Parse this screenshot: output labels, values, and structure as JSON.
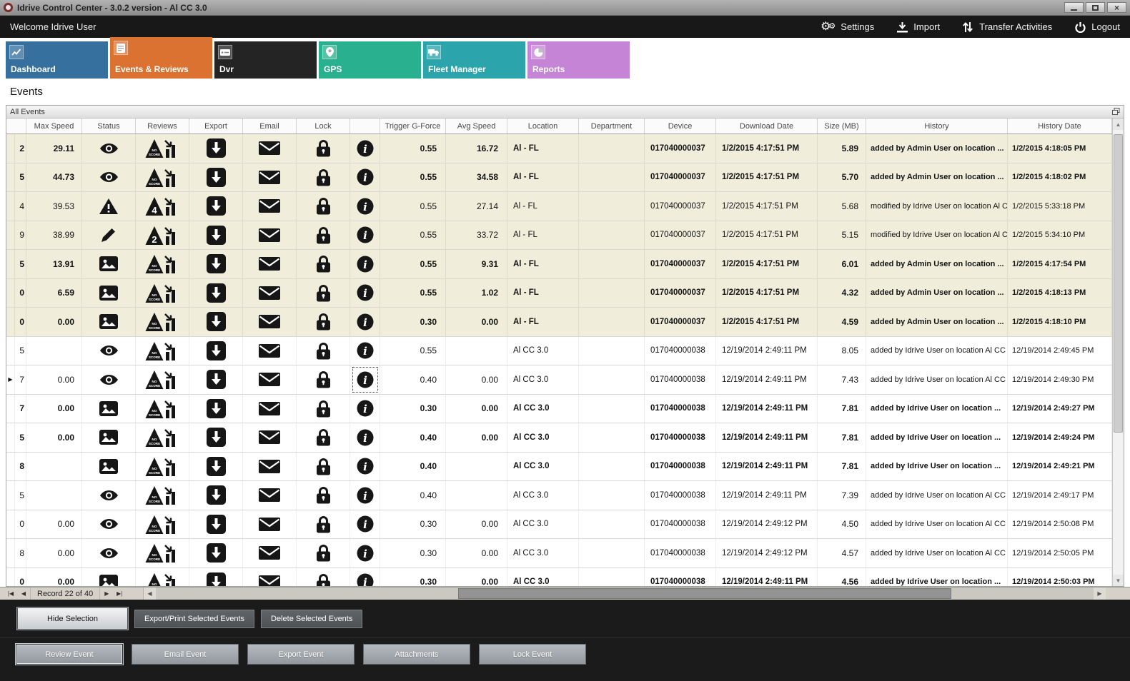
{
  "window": {
    "title": "Idrive Control Center - 3.0.2 version - Al CC 3.0",
    "buttons": [
      "minimize",
      "maximize",
      "close"
    ],
    "logo_icon": "record-ring-icon"
  },
  "menubar": {
    "welcome": "Welcome Idrive User",
    "actions": [
      {
        "label": "Settings",
        "icon": "gears-icon"
      },
      {
        "label": "Import",
        "icon": "import-icon"
      },
      {
        "label": "Transfer Activities",
        "icon": "transfer-icon"
      },
      {
        "label": "Logout",
        "icon": "power-icon"
      }
    ]
  },
  "tabs": [
    {
      "label": "Dashboard",
      "color": "#35709f",
      "icon": "line-chart-icon",
      "selected": false
    },
    {
      "label": "Events & Reviews",
      "color": "#dc7231",
      "icon": "events-list-icon",
      "selected": true
    },
    {
      "label": "Dvr",
      "color": "#242424",
      "icon": "dvr-icon",
      "selected": false
    },
    {
      "label": "GPS",
      "color": "#29b08e",
      "icon": "map-pin-icon",
      "selected": false
    },
    {
      "label": "Fleet Manager",
      "color": "#2ba4ac",
      "icon": "truck-icon",
      "selected": false
    },
    {
      "label": "Reports",
      "color": "#c684d7",
      "icon": "pie-chart-icon",
      "selected": false
    }
  ],
  "page_title": "Events",
  "panel": {
    "title": "All Events",
    "corner_icon": "restore-window-icon"
  },
  "table": {
    "columns": [
      "",
      "Max Speed",
      "Status",
      "Reviews",
      "Export",
      "Email",
      "Lock",
      "",
      "Trigger G-Force",
      "Avg Speed",
      "Location",
      "Department",
      "Device",
      "Download Date",
      "Size (MB)",
      "History",
      "History Date"
    ],
    "rows": [
      {
        "edge": "2",
        "max_speed": "29.11",
        "status": "eye",
        "review": "noscore",
        "trigger": "0.55",
        "avg_speed": "16.72",
        "location": "Al - FL",
        "department": "",
        "device": "017040000037",
        "download_date": "1/2/2015 4:17:51 PM",
        "size": "5.89",
        "history": "added by Admin User on location ...",
        "history_date": "1/2/2015 4:18:05 PM",
        "bold": true,
        "shaded": true,
        "selected": false
      },
      {
        "edge": "5",
        "max_speed": "44.73",
        "status": "eye",
        "review": "noscore",
        "trigger": "0.55",
        "avg_speed": "34.58",
        "location": "Al - FL",
        "department": "",
        "device": "017040000037",
        "download_date": "1/2/2015 4:17:51 PM",
        "size": "5.70",
        "history": "added by Admin User on location ...",
        "history_date": "1/2/2015 4:18:02 PM",
        "bold": true,
        "shaded": true,
        "selected": false
      },
      {
        "edge": "4",
        "max_speed": "39.53",
        "status": "warning",
        "review": "4",
        "trigger": "0.55",
        "avg_speed": "27.14",
        "location": "Al - FL",
        "department": "",
        "device": "017040000037",
        "download_date": "1/2/2015 4:17:51 PM",
        "size": "5.68",
        "history": "modified by Idrive User on location Al C...",
        "history_date": "1/2/2015 5:33:18 PM",
        "bold": false,
        "shaded": true,
        "selected": false
      },
      {
        "edge": "9",
        "max_speed": "38.99",
        "status": "pencil",
        "review": "2",
        "trigger": "0.55",
        "avg_speed": "33.72",
        "location": "Al - FL",
        "department": "",
        "device": "017040000037",
        "download_date": "1/2/2015 4:17:51 PM",
        "size": "5.15",
        "history": "modified by Idrive User on location Al C...",
        "history_date": "1/2/2015 5:34:10 PM",
        "bold": false,
        "shaded": true,
        "selected": false
      },
      {
        "edge": "5",
        "max_speed": "13.91",
        "status": "image",
        "review": "noscore",
        "trigger": "0.55",
        "avg_speed": "9.31",
        "location": "Al - FL",
        "department": "",
        "device": "017040000037",
        "download_date": "1/2/2015 4:17:51 PM",
        "size": "6.01",
        "history": "added by Admin User on location ...",
        "history_date": "1/2/2015 4:17:54 PM",
        "bold": true,
        "shaded": true,
        "selected": false
      },
      {
        "edge": "0",
        "max_speed": "6.59",
        "status": "image",
        "review": "noscore",
        "trigger": "0.55",
        "avg_speed": "1.02",
        "location": "Al - FL",
        "department": "",
        "device": "017040000037",
        "download_date": "1/2/2015 4:17:51 PM",
        "size": "4.32",
        "history": "added by Admin User on location ...",
        "history_date": "1/2/2015 4:18:13 PM",
        "bold": true,
        "shaded": true,
        "selected": false
      },
      {
        "edge": "0",
        "max_speed": "0.00",
        "status": "image",
        "review": "noscore",
        "trigger": "0.30",
        "avg_speed": "0.00",
        "location": "Al - FL",
        "department": "",
        "device": "017040000037",
        "download_date": "1/2/2015 4:17:51 PM",
        "size": "4.59",
        "history": "added by Admin User on location ...",
        "history_date": "1/2/2015 4:18:10 PM",
        "bold": true,
        "shaded": true,
        "selected": false
      },
      {
        "edge": "5",
        "max_speed": "",
        "status": "eye",
        "review": "noscore",
        "trigger": "0.55",
        "avg_speed": "",
        "location": "Al CC 3.0",
        "department": "",
        "device": "017040000038",
        "download_date": "12/19/2014 2:49:11 PM",
        "size": "8.05",
        "history": "added by Idrive User on location Al CC ...",
        "history_date": "12/19/2014 2:49:45 PM",
        "bold": false,
        "shaded": false,
        "selected": false
      },
      {
        "edge": "7",
        "max_speed": "0.00",
        "status": "eye",
        "review": "noscore",
        "trigger": "0.40",
        "avg_speed": "0.00",
        "location": "Al CC 3.0",
        "department": "",
        "device": "017040000038",
        "download_date": "12/19/2014 2:49:11 PM",
        "size": "7.43",
        "history": "added by Idrive User on location Al CC ...",
        "history_date": "12/19/2014 2:49:30 PM",
        "bold": false,
        "shaded": false,
        "selected": true
      },
      {
        "edge": "7",
        "max_speed": "0.00",
        "status": "image",
        "review": "noscore",
        "trigger": "0.30",
        "avg_speed": "0.00",
        "location": "Al CC 3.0",
        "department": "",
        "device": "017040000038",
        "download_date": "12/19/2014 2:49:11 PM",
        "size": "7.81",
        "history": "added by Idrive User on location ...",
        "history_date": "12/19/2014 2:49:27 PM",
        "bold": true,
        "shaded": false,
        "selected": false
      },
      {
        "edge": "5",
        "max_speed": "0.00",
        "status": "image",
        "review": "noscore",
        "trigger": "0.40",
        "avg_speed": "0.00",
        "location": "Al CC 3.0",
        "department": "",
        "device": "017040000038",
        "download_date": "12/19/2014 2:49:11 PM",
        "size": "7.81",
        "history": "added by Idrive User on location ...",
        "history_date": "12/19/2014 2:49:24 PM",
        "bold": true,
        "shaded": false,
        "selected": false
      },
      {
        "edge": "8",
        "max_speed": "",
        "status": "image",
        "review": "noscore",
        "trigger": "0.40",
        "avg_speed": "",
        "location": "Al CC 3.0",
        "department": "",
        "device": "017040000038",
        "download_date": "12/19/2014 2:49:11 PM",
        "size": "7.81",
        "history": "added by Idrive User on location ...",
        "history_date": "12/19/2014 2:49:21 PM",
        "bold": true,
        "shaded": false,
        "selected": false
      },
      {
        "edge": "5",
        "max_speed": "",
        "status": "eye",
        "review": "noscore",
        "trigger": "0.40",
        "avg_speed": "",
        "location": "Al CC 3.0",
        "department": "",
        "device": "017040000038",
        "download_date": "12/19/2014 2:49:11 PM",
        "size": "7.39",
        "history": "added by Idrive User on location Al CC ...",
        "history_date": "12/19/2014 2:49:17 PM",
        "bold": false,
        "shaded": false,
        "selected": false
      },
      {
        "edge": "0",
        "max_speed": "0.00",
        "status": "eye",
        "review": "noscore",
        "trigger": "0.30",
        "avg_speed": "0.00",
        "location": "Al CC 3.0",
        "department": "",
        "device": "017040000038",
        "download_date": "12/19/2014 2:49:12 PM",
        "size": "4.50",
        "history": "added by Idrive User on location Al CC ...",
        "history_date": "12/19/2014 2:50:08 PM",
        "bold": false,
        "shaded": false,
        "selected": false
      },
      {
        "edge": "8",
        "max_speed": "0.00",
        "status": "eye",
        "review": "noscore",
        "trigger": "0.30",
        "avg_speed": "0.00",
        "location": "Al CC 3.0",
        "department": "",
        "device": "017040000038",
        "download_date": "12/19/2014 2:49:12 PM",
        "size": "4.57",
        "history": "added by Idrive User on location Al CC ...",
        "history_date": "12/19/2014 2:50:05 PM",
        "bold": false,
        "shaded": false,
        "selected": false
      },
      {
        "edge": "0",
        "max_speed": "0.00",
        "status": "image",
        "review": "noscore",
        "trigger": "0.30",
        "avg_speed": "0.00",
        "location": "Al CC 3.0",
        "department": "",
        "device": "017040000038",
        "download_date": "12/19/2014 2:49:11 PM",
        "size": "4.56",
        "history": "added by Idrive User on location ...",
        "history_date": "12/19/2014 2:50:03 PM",
        "bold": true,
        "shaded": false,
        "selected": false
      }
    ]
  },
  "navigator": {
    "left_buttons": [
      {
        "name": "first-record",
        "glyph": "|◀"
      },
      {
        "name": "prev-record",
        "glyph": "◀"
      }
    ],
    "record_text": "Record 22 of 40",
    "right_buttons": [
      {
        "name": "next-record",
        "glyph": "▶"
      },
      {
        "name": "last-record",
        "glyph": "▶|"
      }
    ]
  },
  "action_bars": {
    "top": [
      {
        "label": "Hide Selection",
        "style": "light"
      },
      {
        "label": "Export/Print Selected Events",
        "style": "dark"
      },
      {
        "label": "Delete Selected Events",
        "style": "dark"
      }
    ],
    "bottom": [
      {
        "label": "Review Event",
        "focused": true
      },
      {
        "label": "Email Event",
        "focused": false
      },
      {
        "label": "Export Event",
        "focused": false
      },
      {
        "label": "Attachments",
        "focused": false
      },
      {
        "label": "Lock Event",
        "focused": false
      }
    ]
  }
}
